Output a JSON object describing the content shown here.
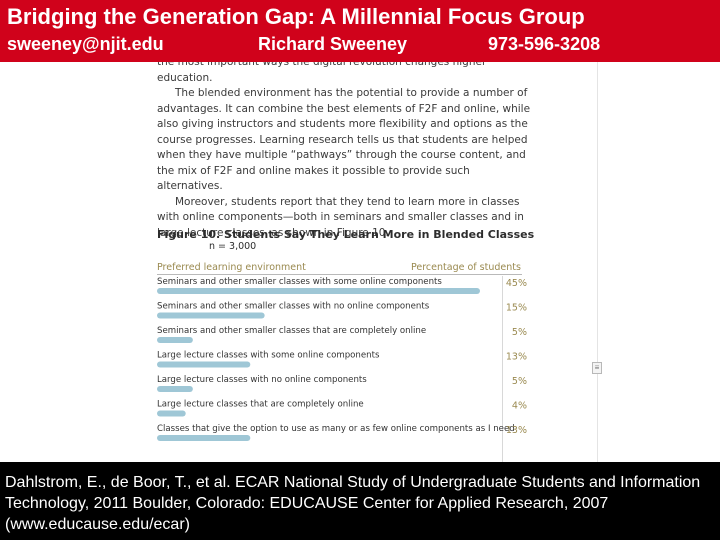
{
  "header": {
    "title": "Bridging the Generation Gap: A Millennial Focus Group",
    "email": "sweeney@njit.edu",
    "name": "Richard Sweeney",
    "phone": "973-596-3208"
  },
  "document": {
    "paragraphs": [
      "the most important ways the digital revolution changes higher education.",
      "The blended environment has the potential to provide a number of advantages. It can combine the best elements of F2F and online, while also giving instructors and students more flexibility and options as the course progresses. Learning research tells us that students are helped when they have multiple “pathways” through the course content, and the mix of F2F and online makes it possible to provide such alternatives.",
      "Moreover, students report that they tend to learn more in classes with online components—both in seminars and smaller classes and in large lecture classes, as shown in Figure 10."
    ]
  },
  "figure": {
    "label": "Figure 10.",
    "title": "Students Say They Learn More in Blended Classes",
    "n_label": "n = 3,000",
    "col_left": "Preferred learning environment",
    "col_right": "Percentage of students"
  },
  "chart_data": {
    "type": "bar",
    "orientation": "horizontal",
    "categories": [
      "Seminars and other smaller classes with some online components",
      "Seminars and other smaller classes with no online components",
      "Seminars and other smaller classes that are completely online",
      "Large lecture classes with some online components",
      "Large lecture classes with no online components",
      "Large lecture classes that are completely online",
      "Classes that give the option to use as many or as few online components as I need"
    ],
    "values": [
      45,
      15,
      5,
      13,
      5,
      4,
      13
    ],
    "value_labels": [
      "45%",
      "15%",
      "5%",
      "13%",
      "5%",
      "4%",
      "13%"
    ],
    "bar_color": "#9fc7d6",
    "xlim": [
      0,
      45
    ]
  },
  "footer": {
    "citation": "Dahlstrom, E., de Boor, T., et al. ECAR National Study of Undergraduate Students and Information Technology, 2011 Boulder, Colorado: EDUCAUSE Center for Applied Research, 2007     (www.educause.edu/ecar)"
  },
  "colors": {
    "header_bg": "#d0021b",
    "footer_bg": "#000000",
    "accent_text": "#9a8a50"
  }
}
